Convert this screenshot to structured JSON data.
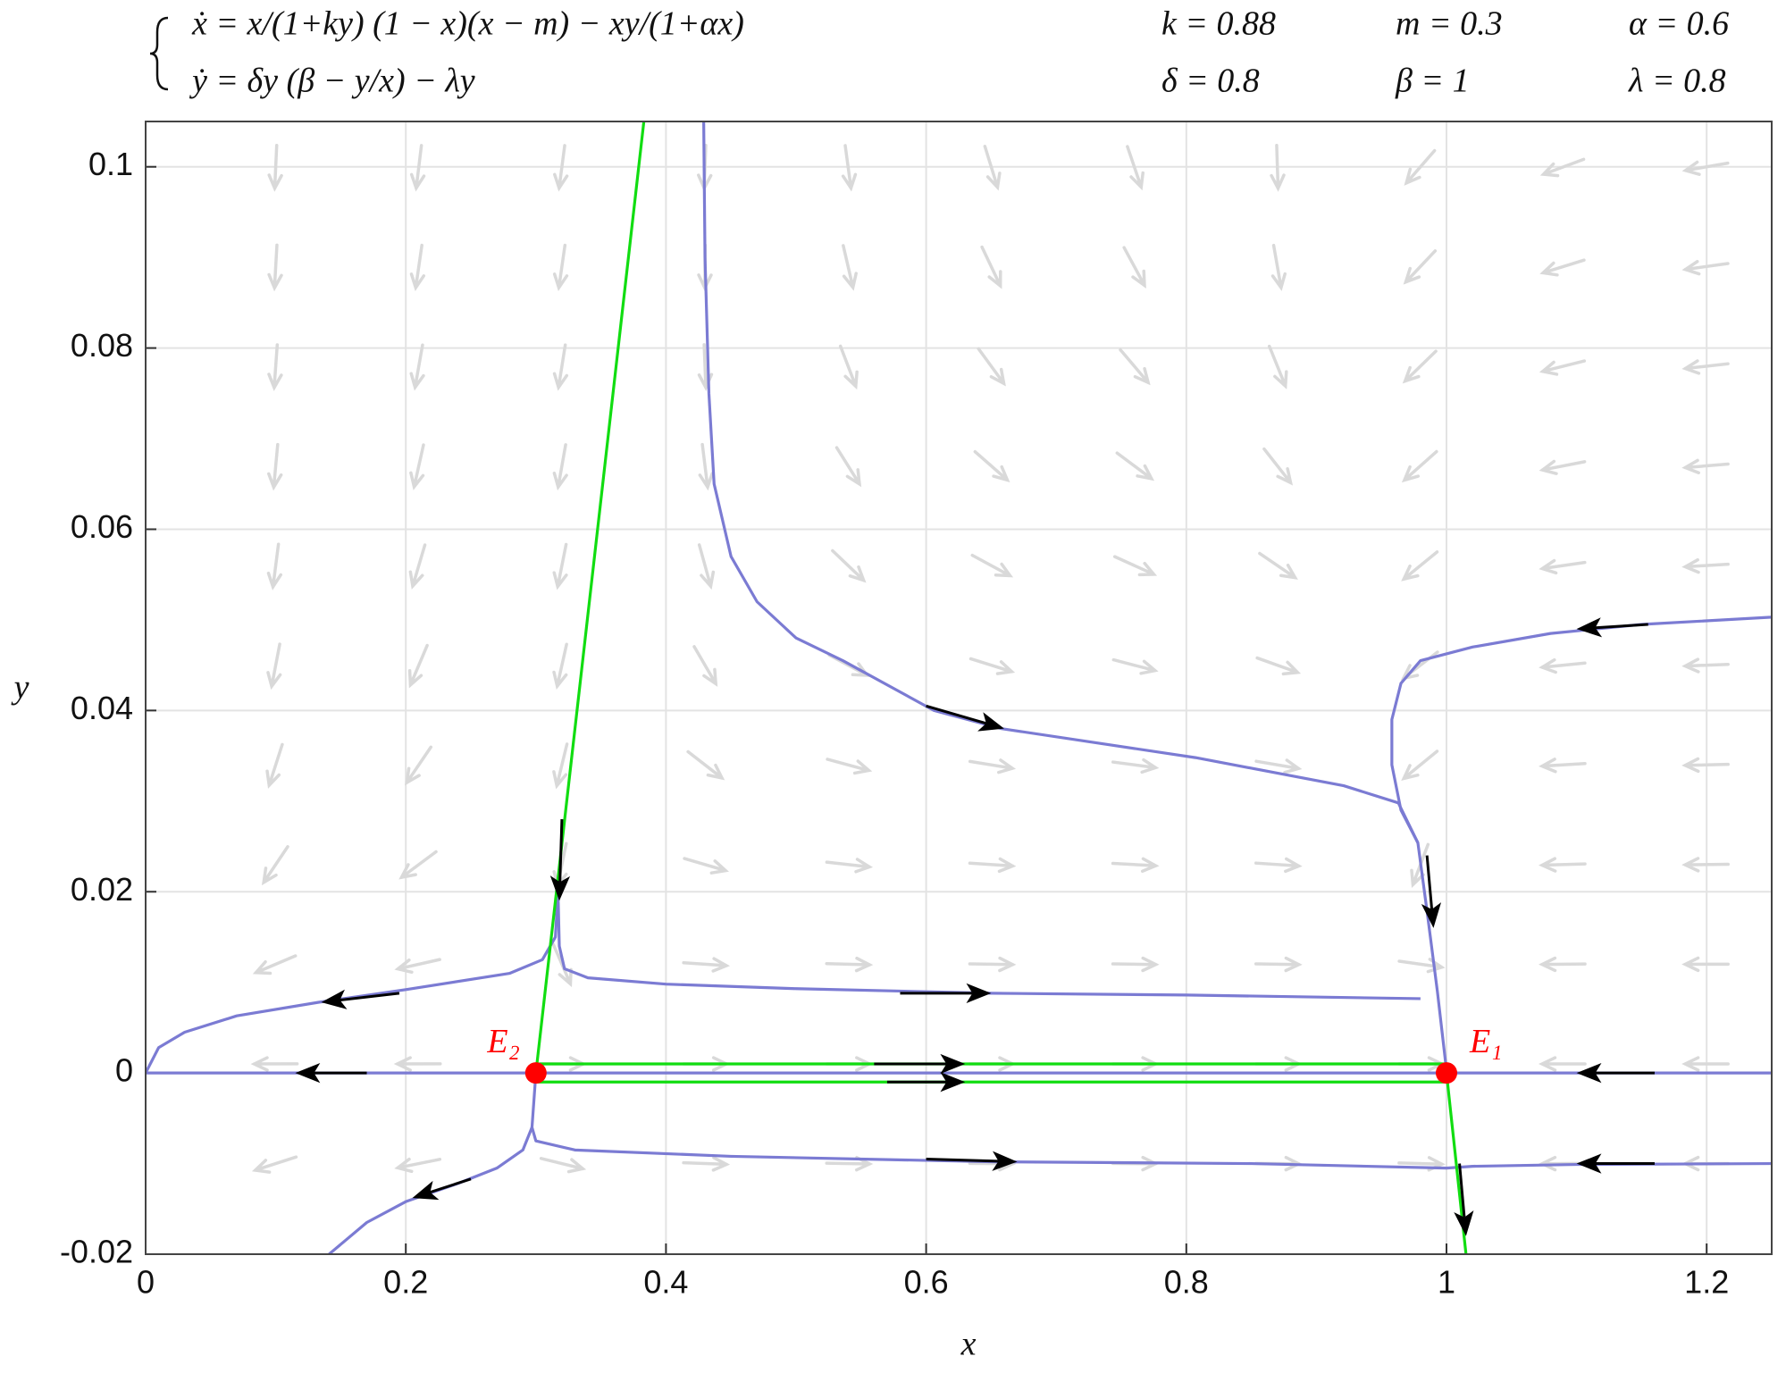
{
  "chart_data": {
    "type": "line",
    "equations": [
      "ẋ = x/(1+ky) (1 − x)(x − m) − xy/(1+αx)",
      "ẏ = δy (β − y/x) − λy"
    ],
    "parameters": [
      {
        "label": "k = 0.88",
        "value": 0.88
      },
      {
        "label": "m = 0.3",
        "value": 0.3
      },
      {
        "label": "α = 0.6",
        "value": 0.6
      },
      {
        "label": "δ = 0.8",
        "value": 0.8
      },
      {
        "label": "β = 1",
        "value": 1
      },
      {
        "label": "λ = 0.8",
        "value": 0.8
      }
    ],
    "xlabel": "x",
    "ylabel": "y",
    "xlim": [
      0,
      1.25
    ],
    "ylim": [
      -0.02,
      0.105
    ],
    "xticks": [
      0,
      0.2,
      0.4,
      0.6,
      0.8,
      1,
      1.2
    ],
    "yticks": [
      -0.02,
      0,
      0.02,
      0.04,
      0.06,
      0.08,
      0.1
    ],
    "grid": true,
    "quiver": {
      "color": "#d9d9d9",
      "x": [
        0.1,
        0.21,
        0.32,
        0.43,
        0.54,
        0.65,
        0.76,
        0.87,
        0.98,
        1.09,
        1.2
      ],
      "y": [
        -0.01,
        0.001,
        0.012,
        0.023,
        0.034,
        0.045,
        0.056,
        0.067,
        0.078,
        0.089,
        0.1
      ]
    },
    "series": [
      {
        "color": "#7b7bd3",
        "x": [
          0,
          1.25
        ],
        "y": [
          0,
          0
        ]
      },
      {
        "color": "#7b7bd3",
        "x": [
          0.429,
          0.43,
          0.433,
          0.437,
          0.45,
          0.47,
          0.5,
          0.536,
          0.606,
          0.658,
          0.807,
          0.921,
          0.963,
          0.978,
          0.985,
          0.993,
          1.0
        ],
        "y": [
          0.105,
          0.09,
          0.075,
          0.065,
          0.057,
          0.052,
          0.048,
          0.0455,
          0.04,
          0.038,
          0.0348,
          0.0317,
          0.0298,
          0.0254,
          0.0179,
          0.009,
          0.0003
        ]
      },
      {
        "color": "#7b7bd3",
        "x": [
          1.25,
          1.15,
          1.08,
          1.02,
          0.98,
          0.965,
          0.958,
          0.958,
          0.965,
          0.978
        ],
        "y": [
          0.0503,
          0.0495,
          0.0485,
          0.047,
          0.0455,
          0.043,
          0.039,
          0.034,
          0.029,
          0.0254
        ]
      },
      {
        "color": "#7b7bd3",
        "x": [
          0.317,
          0.318,
          0.322,
          0.34,
          0.4,
          0.5,
          0.65,
          0.8,
          0.98
        ],
        "y": [
          0.02,
          0.014,
          0.0115,
          0.0105,
          0.0098,
          0.0093,
          0.0088,
          0.0086,
          0.0082
        ]
      },
      {
        "color": "#7b7bd3",
        "x": [
          0.317,
          0.315,
          0.305,
          0.28,
          0.2,
          0.133,
          0.07,
          0.03,
          0.01,
          0
        ],
        "y": [
          0.02,
          0.015,
          0.0125,
          0.011,
          0.0092,
          0.0078,
          0.0063,
          0.0045,
          0.0028,
          0
        ]
      },
      {
        "color": "#7b7bd3",
        "x": [
          0.3,
          0.297,
          0.3,
          0.33,
          0.45,
          0.65,
          0.85,
          1.0,
          1.02,
          1.1,
          1.25
        ],
        "y": [
          0,
          -0.006,
          -0.0075,
          -0.0085,
          -0.0092,
          -0.0098,
          -0.01,
          -0.0105,
          -0.0103,
          -0.0101,
          -0.01
        ]
      },
      {
        "color": "#7b7bd3",
        "x": [
          0.297,
          0.29,
          0.27,
          0.24,
          0.2,
          0.17,
          0.141
        ],
        "y": [
          -0.006,
          -0.0085,
          -0.0105,
          -0.0122,
          -0.0142,
          -0.0165,
          -0.02
        ]
      },
      {
        "color": "#11dd11",
        "x": [
          0.3,
          0.383
        ],
        "y": [
          0,
          0.105
        ]
      },
      {
        "color": "#11dd11",
        "x": [
          1,
          1.015
        ],
        "y": [
          0,
          -0.02
        ]
      },
      {
        "color": "#11dd11",
        "x": [
          0.3,
          1
        ],
        "y": [
          0.001,
          0.001
        ]
      },
      {
        "color": "#11dd11",
        "x": [
          0.3,
          1
        ],
        "y": [
          -0.001,
          -0.001
        ]
      }
    ],
    "arrows": {
      "color": "#000000",
      "items": [
        {
          "x": [
            0.6,
            0.66
          ],
          "y": [
            0.0405,
            0.038
          ]
        },
        {
          "x": [
            0.985,
            0.99
          ],
          "y": [
            0.024,
            0.016
          ]
        },
        {
          "x": [
            0.32,
            0.318
          ],
          "y": [
            0.028,
            0.019
          ]
        },
        {
          "x": [
            0.58,
            0.65
          ],
          "y": [
            0.0088,
            0.0088
          ]
        },
        {
          "x": [
            0.195,
            0.135
          ],
          "y": [
            0.0088,
            0.0078
          ]
        },
        {
          "x": [
            0.17,
            0.115
          ],
          "y": [
            0,
            0
          ]
        },
        {
          "x": [
            0.56,
            0.63
          ],
          "y": [
            0.001,
            0.001
          ]
        },
        {
          "x": [
            0.57,
            0.63
          ],
          "y": [
            -0.001,
            -0.001
          ]
        },
        {
          "x": [
            0.6,
            0.67
          ],
          "y": [
            -0.0095,
            -0.0098
          ]
        },
        {
          "x": [
            1.155,
            1.1
          ],
          "y": [
            0.0495,
            0.049
          ]
        },
        {
          "x": [
            1.16,
            1.1
          ],
          "y": [
            0,
            0
          ]
        },
        {
          "x": [
            1.16,
            1.1
          ],
          "y": [
            -0.01,
            -0.01
          ]
        },
        {
          "x": [
            1.01,
            1.015
          ],
          "y": [
            -0.01,
            -0.018
          ]
        },
        {
          "x": [
            0.25,
            0.205
          ],
          "y": [
            -0.0117,
            -0.0138
          ]
        }
      ]
    },
    "points": {
      "color": "#ff0000",
      "labels": [
        "E₁",
        "E₂"
      ],
      "x": [
        1,
        0.3
      ],
      "y": [
        0,
        0
      ]
    }
  }
}
